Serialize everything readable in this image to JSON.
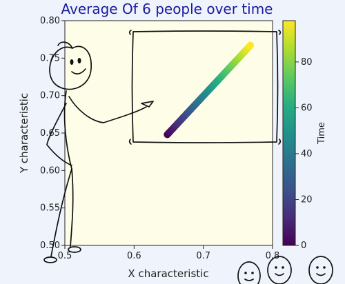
{
  "chart_data": {
    "type": "scatter",
    "title": "Average Of 6 people over time",
    "xlabel": "X characteristic",
    "ylabel": "Y characteristic",
    "xlim": [
      0.5,
      0.8
    ],
    "ylim": [
      0.5,
      0.8
    ],
    "xticks": [
      "0.5",
      "0.6",
      "0.7",
      "0.8"
    ],
    "yticks": [
      "0.50",
      "0.55",
      "0.60",
      "0.65",
      "0.70",
      "0.75",
      "0.80"
    ],
    "series": [
      {
        "t_start": 0,
        "t_end": 98,
        "x_start": 0.648,
        "y_start": 0.648,
        "x_end": 0.768,
        "y_end": 0.767,
        "count": 60
      }
    ],
    "colorbar": {
      "label": "Time",
      "range": [
        0,
        98
      ],
      "ticks": [
        "0",
        "20",
        "40",
        "60",
        "80"
      ],
      "colormap": "viridis"
    },
    "background_color": "#fdfde8",
    "page_background": "#eef3fc"
  }
}
